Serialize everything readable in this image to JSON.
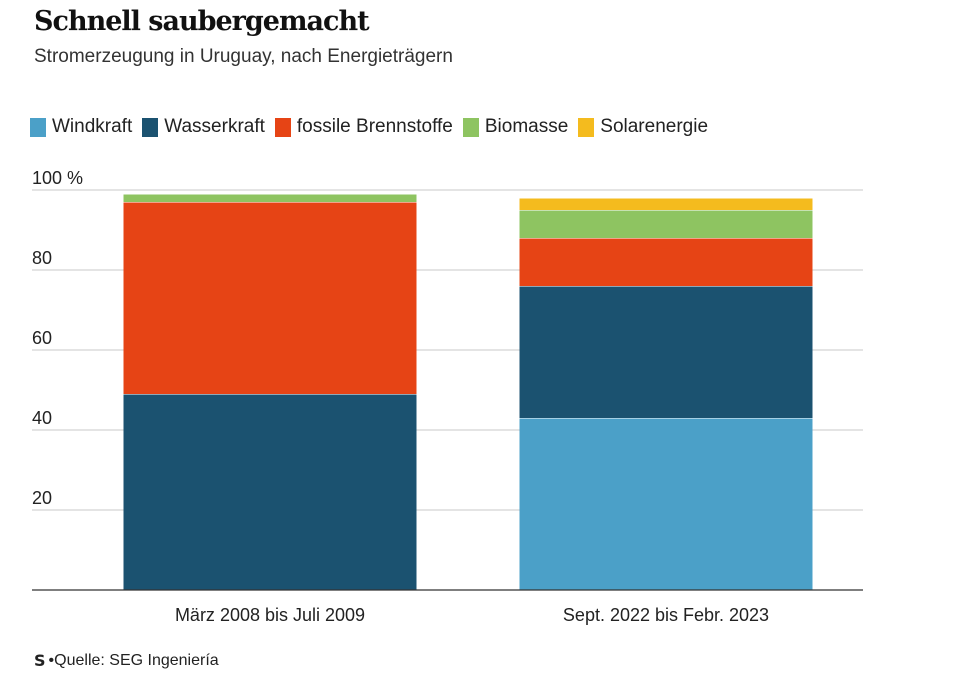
{
  "title": "Schnell saubergemacht",
  "subtitle": "Stromerzeugung in Uruguay, nach Energieträgern",
  "source": {
    "logo_text": "S",
    "text": "Quelle: SEG Ingeniería"
  },
  "chart_data": {
    "type": "bar",
    "stacked": true,
    "categories": [
      "März 2008 bis Juli 2009",
      "Sept. 2022 bis Febr. 2023"
    ],
    "series": [
      {
        "name": "Windkraft",
        "color": "#4ba0c8",
        "values": [
          0,
          43
        ]
      },
      {
        "name": "Wasserkraft",
        "color": "#1b5270",
        "values": [
          49,
          33
        ]
      },
      {
        "name": "fossile Brennstoffe",
        "color": "#e64415",
        "values": [
          48,
          12
        ]
      },
      {
        "name": "Biomasse",
        "color": "#8ec461",
        "values": [
          2,
          7
        ]
      },
      {
        "name": "Solarenergie",
        "color": "#f4bb1e",
        "values": [
          0,
          3
        ]
      }
    ],
    "ylim": [
      0,
      100
    ],
    "yticks": [
      20,
      40,
      60,
      80,
      100
    ],
    "ytick_labels": [
      "20",
      "40",
      "60",
      "80",
      "100 %"
    ],
    "grid": true,
    "legend_position": "top-left"
  }
}
